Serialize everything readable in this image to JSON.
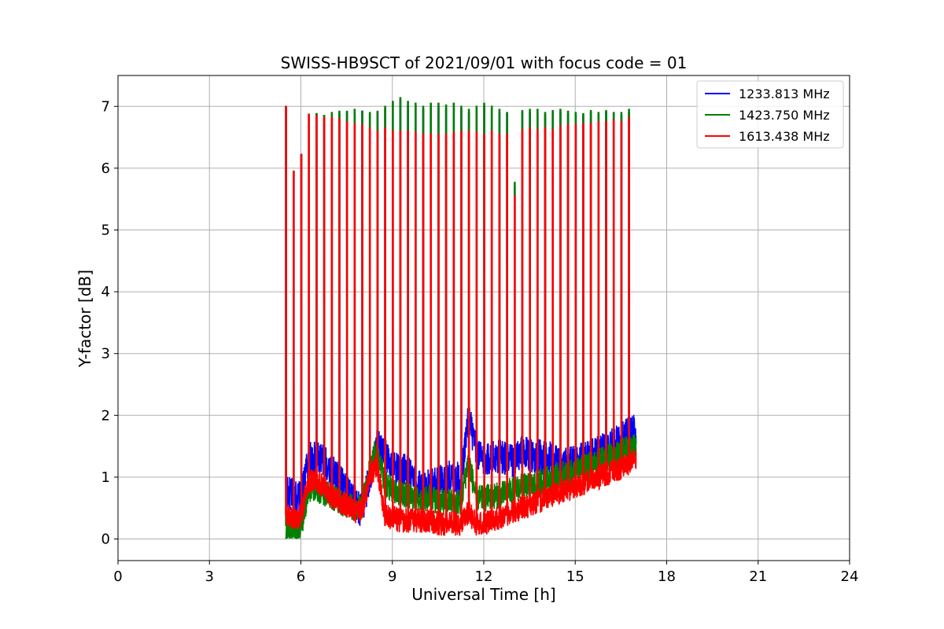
{
  "chart_data": {
    "type": "line",
    "title": "SWISS-HB9SCT of 2021/09/01 with focus code = 01",
    "xlabel": "Universal Time [h]",
    "ylabel": "Y-factor [dB]",
    "xlim": [
      0,
      24
    ],
    "ylim": [
      -0.35,
      7.5
    ],
    "xticks": [
      0,
      3,
      6,
      9,
      12,
      15,
      18,
      21,
      24
    ],
    "yticks": [
      0,
      1,
      2,
      3,
      4,
      5,
      6,
      7
    ],
    "grid": true,
    "legend_position": "top-right",
    "calibration_times": [
      5.5,
      5.75,
      6.0,
      6.25,
      6.5,
      6.75,
      7.0,
      7.25,
      7.5,
      7.75,
      8.0,
      8.25,
      8.5,
      8.75,
      9.0,
      9.25,
      9.5,
      9.75,
      10.0,
      10.25,
      10.5,
      10.75,
      11.0,
      11.25,
      11.5,
      11.75,
      12.0,
      12.25,
      12.5,
      12.75,
      13.0,
      13.25,
      13.5,
      13.75,
      14.0,
      14.25,
      14.5,
      14.75,
      15.0,
      15.25,
      15.5,
      15.75,
      16.0,
      16.25,
      16.5,
      16.75
    ],
    "series": [
      {
        "name": "1233.813 MHz",
        "color": "#0000ff",
        "x": [
          5.5,
          5.75,
          6.0,
          6.25,
          6.5,
          6.75,
          7.0,
          7.25,
          7.5,
          7.75,
          8.0,
          8.25,
          8.5,
          8.75,
          9.0,
          9.25,
          9.5,
          9.75,
          10.0,
          10.25,
          10.5,
          10.75,
          11.0,
          11.25,
          11.5,
          11.75,
          12.0,
          12.25,
          12.5,
          12.75,
          13.0,
          13.25,
          13.5,
          13.75,
          14.0,
          14.25,
          14.5,
          14.75,
          15.0,
          15.25,
          15.5,
          15.75,
          16.0,
          16.25,
          16.5,
          16.75,
          17.0
        ],
        "baseline": [
          0.75,
          0.7,
          0.65,
          1.3,
          1.3,
          1.25,
          1.1,
          0.95,
          0.8,
          0.6,
          0.45,
          1.0,
          1.5,
          1.4,
          1.2,
          1.1,
          1.1,
          0.9,
          0.8,
          0.9,
          0.9,
          1.0,
          1.0,
          0.95,
          2.0,
          1.4,
          1.3,
          1.3,
          1.35,
          1.3,
          1.25,
          1.4,
          1.35,
          1.35,
          1.3,
          1.3,
          1.2,
          1.2,
          1.25,
          1.3,
          1.35,
          1.4,
          1.5,
          1.55,
          1.6,
          1.7,
          1.75
        ],
        "peaks": [
          7.0,
          5.95,
          6.22,
          6.87,
          6.88,
          6.85,
          6.85,
          6.88,
          6.9,
          6.9,
          6.92,
          6.88,
          6.9,
          6.95,
          7.05,
          7.1,
          7.0,
          7.0,
          6.95,
          7.0,
          7.0,
          6.95,
          7.0,
          6.95,
          6.9,
          6.95,
          7.0,
          6.95,
          6.9,
          6.88,
          5.7,
          6.9,
          6.9,
          6.9,
          6.85,
          6.88,
          6.9,
          6.88,
          6.85,
          6.85,
          6.9,
          6.88,
          6.9,
          6.88,
          6.85,
          6.9
        ]
      },
      {
        "name": "1423.750 MHz",
        "color": "#008000",
        "x": [
          5.5,
          5.75,
          6.0,
          6.25,
          6.5,
          6.75,
          7.0,
          7.25,
          7.5,
          7.75,
          8.0,
          8.25,
          8.5,
          8.75,
          9.0,
          9.25,
          9.5,
          9.75,
          10.0,
          10.25,
          10.5,
          10.75,
          11.0,
          11.25,
          11.5,
          11.75,
          12.0,
          12.25,
          12.5,
          12.75,
          13.0,
          13.25,
          13.5,
          13.75,
          14.0,
          14.25,
          14.5,
          14.75,
          15.0,
          15.25,
          15.5,
          15.75,
          16.0,
          16.25,
          16.5,
          16.75,
          17.0
        ],
        "baseline": [
          0.15,
          0.15,
          0.15,
          0.8,
          0.8,
          0.75,
          0.7,
          0.6,
          0.55,
          0.5,
          0.5,
          1.1,
          1.5,
          0.9,
          0.8,
          0.75,
          0.7,
          0.65,
          0.6,
          0.7,
          0.6,
          0.6,
          0.6,
          0.6,
          1.3,
          0.65,
          0.65,
          0.7,
          0.7,
          0.75,
          0.8,
          0.85,
          0.85,
          0.9,
          0.95,
          1.0,
          1.05,
          1.05,
          1.1,
          1.15,
          1.2,
          1.25,
          1.3,
          1.35,
          1.4,
          1.45,
          1.5
        ],
        "peaks": [
          7.0,
          5.95,
          6.22,
          6.87,
          6.88,
          6.85,
          6.9,
          6.92,
          6.92,
          6.95,
          6.92,
          6.9,
          6.92,
          7.0,
          7.08,
          7.14,
          7.08,
          7.05,
          7.0,
          7.05,
          7.05,
          7.02,
          7.05,
          7.0,
          6.95,
          7.0,
          7.05,
          7.0,
          6.95,
          6.9,
          5.77,
          6.93,
          6.95,
          6.95,
          6.9,
          6.93,
          6.95,
          6.92,
          6.9,
          6.88,
          6.93,
          6.9,
          6.93,
          6.9,
          6.9,
          6.95
        ]
      },
      {
        "name": "1613.438 MHz",
        "color": "#ff0000",
        "x": [
          5.5,
          5.75,
          6.0,
          6.25,
          6.5,
          6.75,
          7.0,
          7.25,
          7.5,
          7.75,
          8.0,
          8.25,
          8.5,
          8.75,
          9.0,
          9.25,
          9.5,
          9.75,
          10.0,
          10.25,
          10.5,
          10.75,
          11.0,
          11.25,
          11.5,
          11.75,
          12.0,
          12.25,
          12.5,
          12.75,
          13.0,
          13.25,
          13.5,
          13.75,
          14.0,
          14.25,
          14.5,
          14.75,
          15.0,
          15.25,
          15.5,
          15.75,
          16.0,
          16.25,
          16.5,
          16.75,
          17.0
        ],
        "baseline": [
          0.35,
          0.35,
          0.35,
          0.95,
          0.95,
          0.85,
          0.7,
          0.6,
          0.55,
          0.45,
          0.45,
          1.0,
          1.2,
          0.4,
          0.35,
          0.3,
          0.3,
          0.3,
          0.3,
          0.3,
          0.25,
          0.25,
          0.25,
          0.25,
          0.45,
          0.25,
          0.25,
          0.3,
          0.35,
          0.4,
          0.45,
          0.5,
          0.55,
          0.6,
          0.65,
          0.7,
          0.75,
          0.8,
          0.85,
          0.9,
          0.95,
          1.0,
          1.05,
          1.1,
          1.15,
          1.2,
          1.3
        ],
        "peaks": [
          7.0,
          5.95,
          6.22,
          6.87,
          6.85,
          6.82,
          6.82,
          6.8,
          6.75,
          6.72,
          6.7,
          6.65,
          6.6,
          6.65,
          6.6,
          6.6,
          6.6,
          6.58,
          6.55,
          6.55,
          6.55,
          6.55,
          6.58,
          6.6,
          6.6,
          6.58,
          6.55,
          6.6,
          6.55,
          6.55,
          5.55,
          6.62,
          6.65,
          6.62,
          6.65,
          6.62,
          6.68,
          6.7,
          6.7,
          6.72,
          6.72,
          6.75,
          6.75,
          6.78,
          6.75,
          6.82
        ]
      }
    ]
  }
}
